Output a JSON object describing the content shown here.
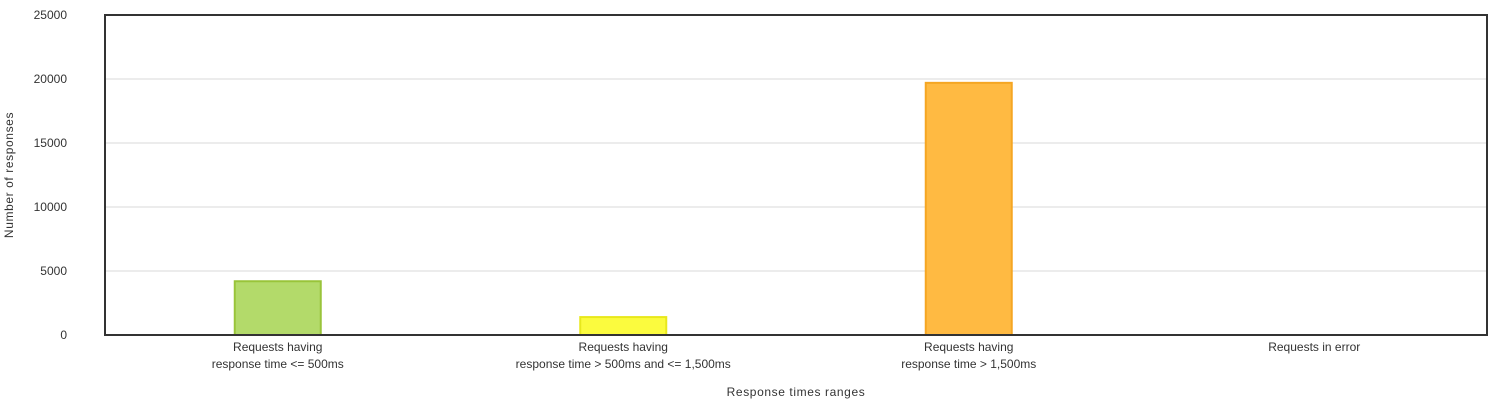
{
  "chart_data": {
    "type": "bar",
    "title": "",
    "xlabel": "Response times ranges",
    "ylabel": "Number of responses",
    "ylim": [
      0,
      25000
    ],
    "yticks": [
      0,
      5000,
      10000,
      15000,
      20000,
      25000
    ],
    "grid": true,
    "legend": "none",
    "categories": [
      [
        "Requests having",
        "response time <= 500ms"
      ],
      [
        "Requests having",
        "response time > 500ms and <= 1,500ms"
      ],
      [
        "Requests having",
        "response time > 1,500ms"
      ],
      [
        "Requests in error"
      ]
    ],
    "values": [
      4200,
      1400,
      19700,
      0
    ],
    "colors": [
      {
        "fill": "#b3da6a",
        "stroke": "#99c43a"
      },
      {
        "fill": "#fbfb3e",
        "stroke": "#e8e81c"
      },
      {
        "fill": "#ffba42",
        "stroke": "#f5a623"
      },
      {
        "fill": "#f15b4f",
        "stroke": "#d43f3a"
      }
    ]
  }
}
